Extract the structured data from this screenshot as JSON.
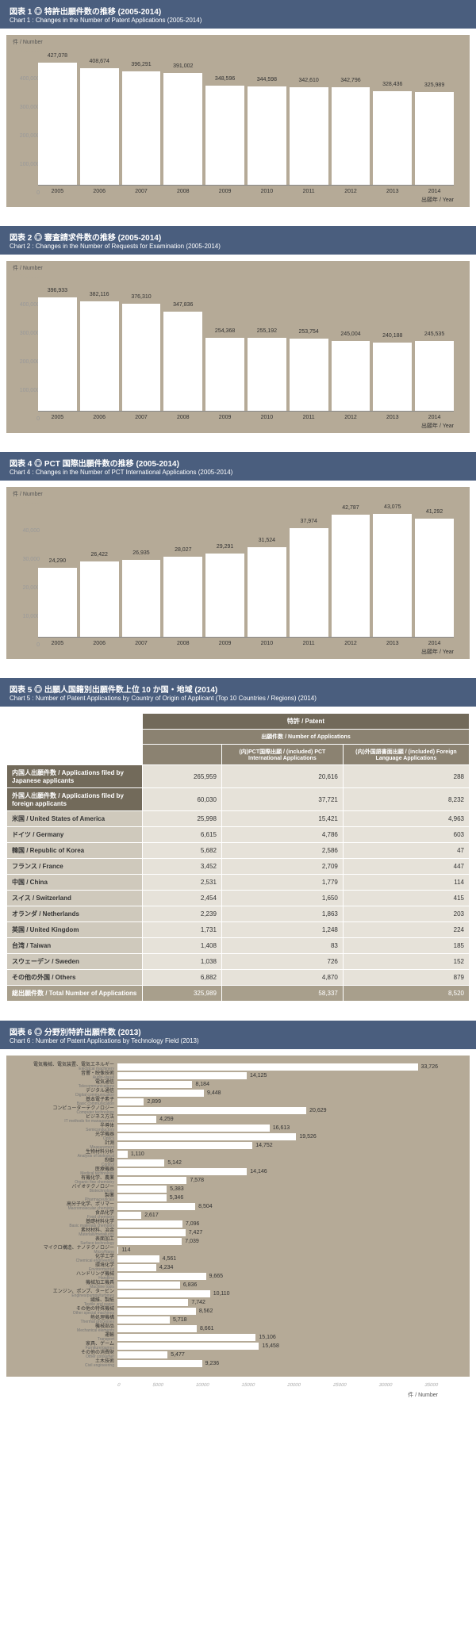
{
  "chart1": {
    "title_jp": "図表 1 ◎ 特許出願件数の推移 (2005-2014)",
    "title_en": "Chart 1 : Changes in the Number of Patent Applications (2005-2014)",
    "ylabel": "件 / Number",
    "ymax": 500000,
    "ystep": 100000,
    "years": [
      "2005",
      "2006",
      "2007",
      "2008",
      "2009",
      "2010",
      "2011",
      "2012",
      "2013",
      "2014"
    ],
    "values": [
      427078,
      408674,
      396291,
      391002,
      348596,
      344598,
      342610,
      342796,
      328436,
      325989
    ],
    "xaxis": "出願年 / Year"
  },
  "chart2": {
    "title_jp": "図表 2 ◎ 審査請求件数の推移 (2005-2014)",
    "title_en": "Chart 2 : Changes in the Number of Requests for Examination (2005-2014)",
    "ylabel": "件 / Number",
    "ymax": 500000,
    "ystep": 100000,
    "years": [
      "2005",
      "2006",
      "2007",
      "2008",
      "2009",
      "2010",
      "2011",
      "2012",
      "2013",
      "2014"
    ],
    "values": [
      396933,
      382116,
      376310,
      347836,
      254368,
      255192,
      253754,
      245004,
      240188,
      245535
    ],
    "xaxis": "出願年 / Year"
  },
  "chart4": {
    "title_jp": "図表 4 ◎ PCT 国際出願件数の推移 (2005-2014)",
    "title_en": "Chart 4 : Changes in the Number of PCT International Applications (2005-2014)",
    "ylabel": "件 / Number",
    "ymax": 50000,
    "ystep": 10000,
    "years": [
      "2005",
      "2006",
      "2007",
      "2008",
      "2009",
      "2010",
      "2011",
      "2012",
      "2013",
      "2014"
    ],
    "values": [
      24290,
      26422,
      26935,
      28027,
      29291,
      31524,
      37974,
      42787,
      43075,
      41292
    ],
    "xaxis": "出願年 / Year"
  },
  "chart5": {
    "title_jp": "図表 5 ◎ 出願人国籍別出願件数上位 10 か国・地域 (2014)",
    "title_en": "Chart 5 : Number of Patent Applications by Country of Origin of Applicant (Top 10 Countries / Regions) (2014)",
    "col_patent": "特許 / Patent",
    "col_apps": "出願件数 / Number of Applications",
    "col_pct": "(内)PCT国際出願 / (included) PCT International Applications",
    "col_fl": "(内)外国語書面出願 / (included) Foreign Language Applications",
    "rows": [
      {
        "hdr": true,
        "label": "内国人出願件数 /\nApplications filed by Japanese applicants",
        "a": 265959,
        "b": 20616,
        "c": 288
      },
      {
        "hdr": true,
        "label": "外国人出願件数 /\nApplications filed by foreign applicants",
        "a": 60030,
        "b": 37721,
        "c": 8232
      },
      {
        "label": "米国 / United States of America",
        "a": 25998,
        "b": 15421,
        "c": 4963
      },
      {
        "label": "ドイツ / Germany",
        "a": 6615,
        "b": 4786,
        "c": 603
      },
      {
        "label": "韓国 / Republic of Korea",
        "a": 5682,
        "b": 2586,
        "c": 47
      },
      {
        "label": "フランス / France",
        "a": 3452,
        "b": 2709,
        "c": 447
      },
      {
        "label": "中国 / China",
        "a": 2531,
        "b": 1779,
        "c": 114
      },
      {
        "label": "スイス / Switzerland",
        "a": 2454,
        "b": 1650,
        "c": 415
      },
      {
        "label": "オランダ / Netherlands",
        "a": 2239,
        "b": 1863,
        "c": 203
      },
      {
        "label": "英国 / United Kingdom",
        "a": 1731,
        "b": 1248,
        "c": 224
      },
      {
        "label": "台湾 / Taiwan",
        "a": 1408,
        "b": 83,
        "c": 185
      },
      {
        "label": "スウェーデン / Sweden",
        "a": 1038,
        "b": 726,
        "c": 152
      },
      {
        "label": "その他の外国 / Others",
        "a": 6882,
        "b": 4870,
        "c": 879
      }
    ],
    "total": {
      "label": "総出願件数 / Total Number of Applications",
      "a": 325989,
      "b": 58337,
      "c": 8520
    }
  },
  "chart6": {
    "title_jp": "図表 6 ◎ 分野別特許出願件数 (2013)",
    "title_en": "Chart 6 : Number of Patent Applications by Technology Field (2013)",
    "xmax": 35000,
    "xaxis_label": "件 / Number",
    "xticks": [
      "0",
      "5000",
      "10000",
      "15000",
      "20000",
      "25000",
      "30000",
      "35000"
    ],
    "items": [
      {
        "jp": "電気機械、電気装置、電気エネルギー",
        "en": "Electrical machinery",
        "v": 33726
      },
      {
        "jp": "音響・映像技術",
        "en": "Audio-visual",
        "v": 14125
      },
      {
        "jp": "電気通信",
        "en": "Telecommunications",
        "v": 8184
      },
      {
        "jp": "デジタル通信",
        "en": "Digital communication",
        "v": 9448
      },
      {
        "jp": "基本電子素子",
        "en": "Basic communication",
        "v": 2899
      },
      {
        "jp": "コンピューターテクノロジー",
        "en": "Computer technology",
        "v": 20629
      },
      {
        "jp": "ビジネス方法",
        "en": "IT methods for management",
        "v": 4259
      },
      {
        "jp": "半導体",
        "en": "Semiconductors",
        "v": 16613
      },
      {
        "jp": "光学機器",
        "en": "Optics",
        "v": 19526
      },
      {
        "jp": "計測",
        "en": "Measurement",
        "v": 14752
      },
      {
        "jp": "生物材料分析",
        "en": "Analysis of biological",
        "v": 1110
      },
      {
        "jp": "制御",
        "en": "Control",
        "v": 5142
      },
      {
        "jp": "医療機器",
        "en": "Medical technology",
        "v": 14146
      },
      {
        "jp": "有機化学、農薬",
        "en": "Organic fine chemistry",
        "v": 7578
      },
      {
        "jp": "バイオテクノロジー",
        "en": "Biotechnology",
        "v": 5383
      },
      {
        "jp": "製薬",
        "en": "Pharmaceuticals",
        "v": 5346
      },
      {
        "jp": "高分子化学、ポリマー",
        "en": "Macromolecular chemistry",
        "v": 8504
      },
      {
        "jp": "食品化学",
        "en": "Food chemistry",
        "v": 2617
      },
      {
        "jp": "基礎材料化学",
        "en": "Basic materials chemistry",
        "v": 7096
      },
      {
        "jp": "素材材料、冶金",
        "en": "Materials/metallurgy",
        "v": 7427
      },
      {
        "jp": "表面加工",
        "en": "Surface technology",
        "v": 7039
      },
      {
        "jp": "マイクロ構造、ナノテクノロジー",
        "en": "Micro/Nano",
        "v": 114
      },
      {
        "jp": "化学工学",
        "en": "Chemical engineering",
        "v": 4561
      },
      {
        "jp": "環境化学",
        "en": "Environmental",
        "v": 4234
      },
      {
        "jp": "ハンドリング機械",
        "en": "Handling",
        "v": 9665
      },
      {
        "jp": "機械加工機具",
        "en": "Machine tools",
        "v": 6836
      },
      {
        "jp": "エンジン、ポンプ、タービン",
        "en": "Engines/pumps/turbines",
        "v": 10110
      },
      {
        "jp": "繊維、製紙",
        "en": "Textile and paper",
        "v": 7742
      },
      {
        "jp": "その他の特殊機械",
        "en": "Other special machines",
        "v": 8562
      },
      {
        "jp": "熱処理機構",
        "en": "Thermal processes",
        "v": 5718
      },
      {
        "jp": "機械部品",
        "en": "Mechanical elements",
        "v": 8661
      },
      {
        "jp": "運輸",
        "en": "Transport",
        "v": 15106
      },
      {
        "jp": "家具、ゲーム",
        "en": "Furniture/games",
        "v": 15458
      },
      {
        "jp": "その他の消費財",
        "en": "Other consumer",
        "v": 5477
      },
      {
        "jp": "土木技術",
        "en": "Civil engineering",
        "v": 9236
      }
    ]
  }
}
